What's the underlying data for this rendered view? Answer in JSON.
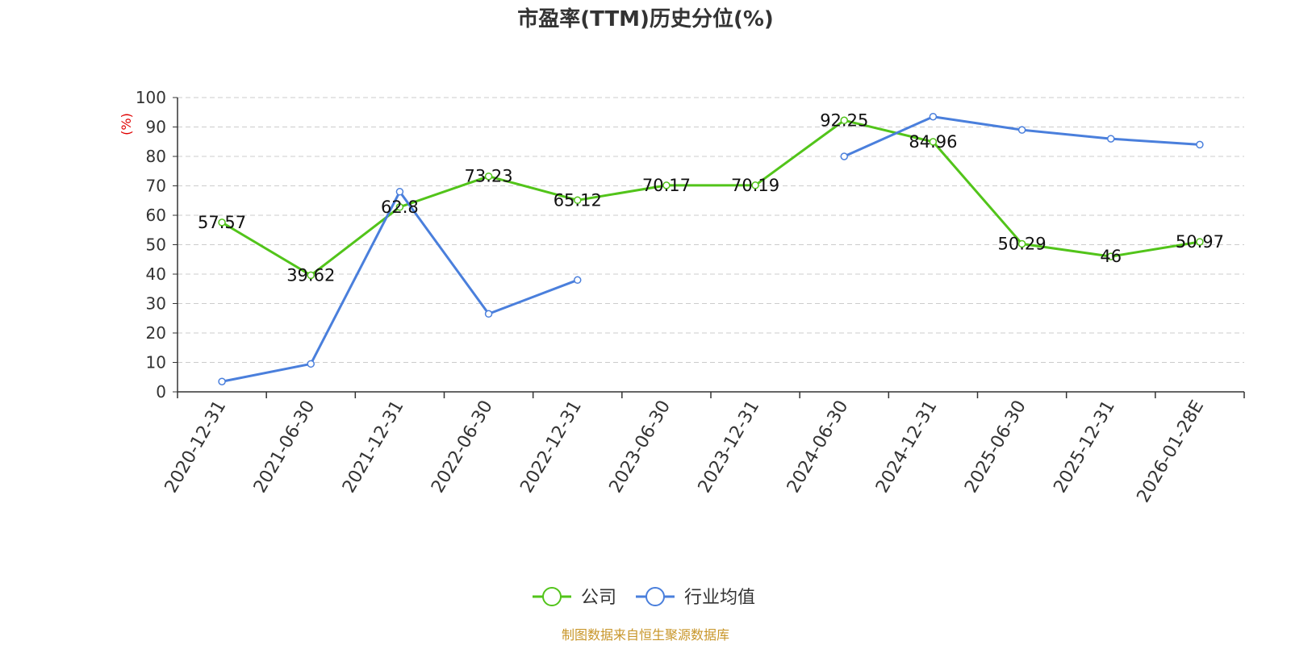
{
  "colors": {
    "company": "#52c41a",
    "industry": "#4a7fdc",
    "grid": "#cccccc",
    "axis": "#333333",
    "unit": "#e00000",
    "source": "#c8962a"
  },
  "chart_data": {
    "type": "line",
    "title": "市盈率(TTM)历史分位(%)",
    "ylabel": "(%)",
    "xlabel": "",
    "ylim": [
      0,
      100
    ],
    "yticks": [
      0,
      10,
      20,
      30,
      40,
      50,
      60,
      70,
      80,
      90,
      100
    ],
    "grid": true,
    "legend_position": "bottom",
    "categories": [
      "2020-12-31",
      "2021-06-30",
      "2021-12-31",
      "2022-06-30",
      "2022-12-31",
      "2023-06-30",
      "2023-12-31",
      "2024-06-30",
      "2024-12-31",
      "2025-06-30",
      "2025-12-31",
      "2026-01-28E"
    ],
    "series": [
      {
        "name": "公司",
        "color": "#52c41a",
        "values": [
          57.57,
          39.62,
          62.8,
          73.23,
          65.12,
          70.17,
          70.19,
          92.25,
          84.96,
          50.29,
          46,
          50.97
        ],
        "labels": [
          "57.57",
          "39.62",
          "62.8",
          "73.23",
          "65.12",
          "70.17",
          "70.19",
          "92.25",
          "84.96",
          "50.29",
          "46",
          "50.97"
        ]
      },
      {
        "name": "行业均值",
        "color": "#4a7fdc",
        "values": [
          3.5,
          9.5,
          68,
          26.5,
          38,
          null,
          null,
          80,
          93.5,
          89,
          86,
          84
        ]
      }
    ]
  },
  "source": "制图数据来自恒生聚源数据库"
}
